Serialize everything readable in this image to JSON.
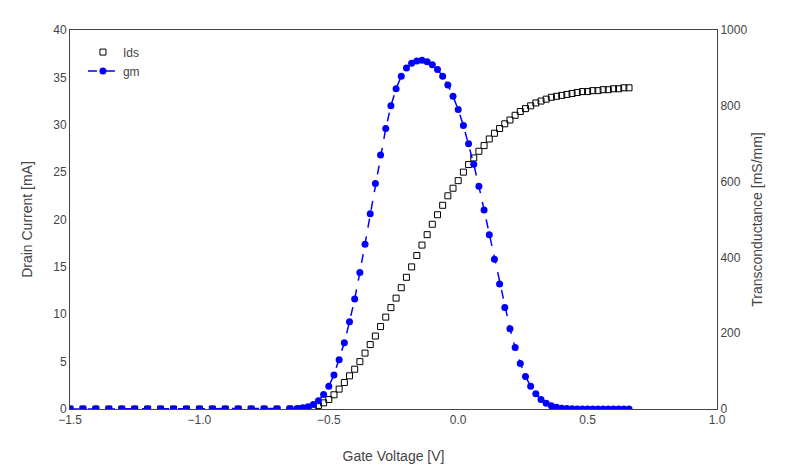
{
  "chart_data": {
    "type": "line",
    "xlabel": "Gate Voltage [V]",
    "ylabel": "Drain Current [mA]",
    "y2label": "Transconductance [mS/mm]",
    "xlim": [
      -1.5,
      1.0
    ],
    "ylim": [
      0,
      40
    ],
    "y2lim": [
      0,
      1000
    ],
    "xticks": [
      {
        "value": -1.5,
        "label": "−1.5"
      },
      {
        "value": -1.0,
        "label": "−1.0"
      },
      {
        "value": -0.5,
        "label": "−0.5"
      },
      {
        "value": 0.0,
        "label": "0.0"
      },
      {
        "value": 0.5,
        "label": "0.5"
      },
      {
        "value": 1.0,
        "label": "1.0"
      }
    ],
    "yticks": [
      0,
      5,
      10,
      15,
      20,
      25,
      30,
      35,
      40
    ],
    "y2ticks": [
      0,
      200,
      400,
      600,
      800,
      1000
    ],
    "grid": false,
    "legend": "upper left",
    "x": [
      -1.5,
      -1.45,
      -1.4,
      -1.35,
      -1.3,
      -1.25,
      -1.2,
      -1.15,
      -1.1,
      -1.05,
      -1.0,
      -0.95,
      -0.9,
      -0.85,
      -0.8,
      -0.75,
      -0.7,
      -0.65,
      -0.62,
      -0.6,
      -0.58,
      -0.56,
      -0.54,
      -0.52,
      -0.5,
      -0.48,
      -0.46,
      -0.44,
      -0.42,
      -0.4,
      -0.38,
      -0.36,
      -0.34,
      -0.32,
      -0.3,
      -0.28,
      -0.26,
      -0.24,
      -0.22,
      -0.2,
      -0.18,
      -0.16,
      -0.14,
      -0.12,
      -0.1,
      -0.08,
      -0.06,
      -0.04,
      -0.02,
      0.0,
      0.02,
      0.04,
      0.06,
      0.08,
      0.1,
      0.12,
      0.14,
      0.16,
      0.18,
      0.2,
      0.22,
      0.24,
      0.26,
      0.28,
      0.3,
      0.32,
      0.34,
      0.36,
      0.38,
      0.4,
      0.42,
      0.44,
      0.46,
      0.48,
      0.5,
      0.52,
      0.54,
      0.56,
      0.58,
      0.6,
      0.62,
      0.64,
      0.66
    ],
    "series": [
      {
        "name": "Ids",
        "type": "scatter",
        "color": "black",
        "marker": "square-open",
        "line_style": "none",
        "values": [
          0.0,
          0.0,
          0.0,
          0.0,
          0.0,
          0.0,
          0.0,
          0.0,
          0.0,
          0.0,
          0.0,
          0.0,
          0.0,
          0.0,
          0.0,
          0.0,
          0.0,
          0.0,
          0.0,
          0.02,
          0.08,
          0.18,
          0.38,
          0.65,
          1.0,
          1.5,
          2.1,
          2.8,
          3.5,
          4.2,
          5.0,
          5.9,
          6.8,
          7.7,
          8.7,
          9.7,
          10.7,
          11.7,
          12.8,
          13.9,
          15.0,
          16.2,
          17.3,
          18.4,
          19.5,
          20.5,
          21.5,
          22.5,
          23.3,
          24.1,
          25.0,
          25.8,
          26.5,
          27.2,
          27.8,
          28.5,
          29.1,
          29.6,
          30.1,
          30.5,
          31.0,
          31.4,
          31.7,
          32.0,
          32.3,
          32.5,
          32.7,
          32.9,
          33.0,
          33.1,
          33.2,
          33.3,
          33.4,
          33.5,
          33.5,
          33.6,
          33.6,
          33.7,
          33.7,
          33.8,
          33.8,
          33.9,
          33.9
        ]
      },
      {
        "name": "gm",
        "type": "line",
        "axis": "y2",
        "color": "blue",
        "marker": "circle",
        "line_style": "dash",
        "values": [
          0.0,
          0.0,
          0.0,
          0.0,
          0.0,
          0.0,
          0.0,
          0.0,
          0.0,
          0.0,
          0.0,
          0.0,
          0.0,
          0.0,
          0.0,
          0.0,
          0.0,
          0.5,
          1.5,
          3.0,
          6.0,
          12.0,
          22.0,
          38.0,
          60.0,
          90.0,
          130.0,
          175.0,
          230.0,
          290.0,
          360.0,
          435.0,
          515.0,
          595.0,
          670.0,
          740.0,
          800.0,
          845.0,
          878.0,
          900.0,
          912.0,
          918.0,
          920.0,
          916.0,
          908.0,
          896.0,
          878.0,
          855.0,
          825.0,
          790.0,
          748.0,
          700.0,
          646.0,
          588.0,
          525.0,
          460.0,
          395.0,
          330.0,
          268.0,
          212.0,
          162.0,
          120.0,
          86.0,
          60.0,
          40.0,
          25.0,
          15.0,
          8.5,
          4.5,
          2.2,
          1.0,
          0.5,
          0.2,
          0.1,
          0.0,
          0.0,
          0.0,
          0.0,
          0.0,
          0.0,
          0.0,
          0.0,
          0.0
        ]
      }
    ]
  }
}
